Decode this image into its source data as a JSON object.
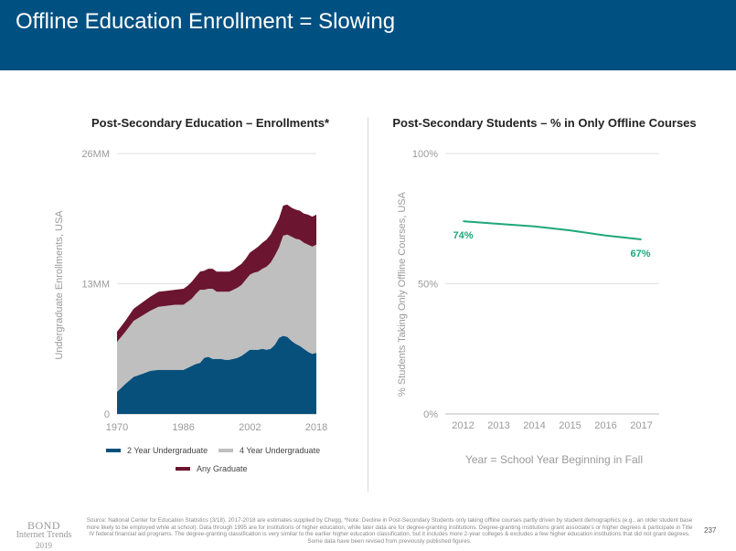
{
  "header": {
    "title": "Offline Education Enrollment = Slowing"
  },
  "chart_data": [
    {
      "type": "area",
      "stacked": true,
      "title": "Post-Secondary Education – Enrollments*",
      "xlabel": "",
      "ylabel": "Undergraduate Enrollments, USA",
      "x_ticks": [
        "1970",
        "1986",
        "2002",
        "2018"
      ],
      "y_ticks": [
        "0",
        "13MM",
        "26MM"
      ],
      "xlim": [
        1970,
        2018
      ],
      "ylim": [
        0,
        26
      ],
      "grid": true,
      "legend_position": "bottom",
      "x": [
        1970,
        1972,
        1974,
        1976,
        1978,
        1980,
        1982,
        1984,
        1986,
        1987,
        1988,
        1989,
        1990,
        1991,
        1992,
        1993,
        1994,
        1995,
        1996,
        1997,
        1998,
        1999,
        2000,
        2001,
        2002,
        2003,
        2004,
        2005,
        2006,
        2007,
        2008,
        2009,
        2010,
        2011,
        2012,
        2013,
        2014,
        2015,
        2016,
        2017,
        2018
      ],
      "series": [
        {
          "name": "2 Year Undergraduate",
          "color": "#07507C",
          "values": [
            2.2,
            3.0,
            3.7,
            4.0,
            4.3,
            4.4,
            4.4,
            4.4,
            4.4,
            4.6,
            4.8,
            5.0,
            5.1,
            5.6,
            5.7,
            5.5,
            5.5,
            5.5,
            5.4,
            5.4,
            5.5,
            5.6,
            5.8,
            6.1,
            6.4,
            6.4,
            6.4,
            6.5,
            6.4,
            6.5,
            6.9,
            7.6,
            7.8,
            7.7,
            7.3,
            7.0,
            6.8,
            6.5,
            6.2,
            6.0,
            6.1
          ]
        },
        {
          "name": "4 Year Undergraduate",
          "color": "#BFBFBF",
          "values": [
            5.0,
            5.2,
            5.6,
            5.8,
            6.0,
            6.3,
            6.4,
            6.5,
            6.5,
            6.6,
            6.7,
            7.0,
            7.3,
            6.8,
            6.8,
            7.0,
            6.7,
            6.7,
            6.8,
            6.8,
            6.9,
            7.0,
            7.1,
            7.3,
            7.5,
            7.7,
            7.8,
            8.0,
            8.3,
            8.6,
            8.9,
            9.0,
            10.0,
            10.2,
            10.4,
            10.5,
            10.6,
            10.6,
            10.7,
            10.7,
            10.8
          ]
        },
        {
          "name": "Any Graduate",
          "color": "#6B1530",
          "values": [
            1.0,
            1.1,
            1.2,
            1.3,
            1.4,
            1.5,
            1.5,
            1.5,
            1.6,
            1.6,
            1.7,
            1.7,
            1.8,
            1.9,
            2.0,
            2.0,
            2.0,
            2.0,
            2.0,
            2.0,
            2.0,
            2.1,
            2.1,
            2.1,
            2.2,
            2.3,
            2.5,
            2.6,
            2.7,
            2.8,
            2.9,
            2.9,
            3.0,
            3.0,
            2.9,
            2.9,
            2.9,
            2.9,
            3.0,
            3.0,
            3.0
          ]
        }
      ]
    },
    {
      "type": "line",
      "title": "Post-Secondary Students – % in Only Offline Courses",
      "xlabel": "Year = School Year Beginning in Fall",
      "ylabel": "% Students Taking Only Offline Courses, USA",
      "categories": [
        "2012",
        "2013",
        "2014",
        "2015",
        "2016",
        "2017"
      ],
      "y_ticks": [
        "0%",
        "50%",
        "100%"
      ],
      "ylim": [
        0,
        100
      ],
      "grid": true,
      "series": [
        {
          "name": "",
          "color": "#1FA77A",
          "values": [
            74,
            73,
            72,
            70.5,
            68.5,
            67
          ]
        }
      ],
      "data_labels": [
        {
          "index": 0,
          "text": "74%"
        },
        {
          "index": 5,
          "text": "67%"
        }
      ]
    }
  ],
  "footer": {
    "logo_brand": "BOND",
    "logo_sub": "Internet Trends",
    "logo_year": "2019",
    "source": "Source: National Center for Education Statistics (3/18). 2017-2018 are estimates supplied by Chegg. *Note: Decline in Post-Secondary Students only taking offline courses partly driven by student demographics (e.g., an older student base more likely to be employed while at school). Data through 1995 are for institutions of higher education, while later data are for degree-granting institutions. Degree-granting institutions grant associate's or higher degrees & participate in Title IV federal financial aid programs. The degree-granting classification is very similar to the earlier higher education classification, but it includes more 2-year colleges & excludes a few higher education institutions that did not grant degrees. Some data have been revised from previously published figures.",
    "page_number": "237"
  }
}
